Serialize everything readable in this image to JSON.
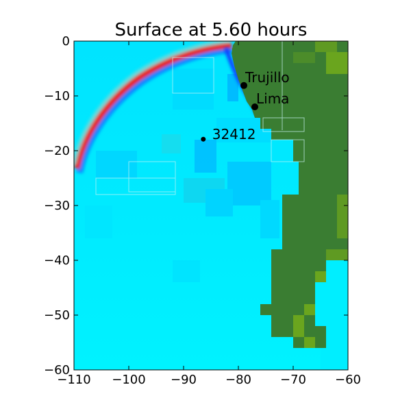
{
  "chart_data": {
    "type": "heatmap",
    "title": "Surface at 5.60 hours",
    "xlabel": "",
    "ylabel": "",
    "xlim": [
      -110,
      -60
    ],
    "ylim": [
      -60,
      0
    ],
    "x_ticks": [
      -110,
      -100,
      -90,
      -80,
      -70,
      -60
    ],
    "x_tick_labels": [
      "−110",
      "−100",
      "−90",
      "−80",
      "−70",
      "−60"
    ],
    "y_ticks": [
      0,
      -10,
      -20,
      -30,
      -40,
      -50,
      -60
    ],
    "y_tick_labels": [
      "0",
      "−10",
      "−20",
      "−30",
      "−40",
      "−50",
      "−60"
    ],
    "grid": false,
    "colors": {
      "ocean": "#00eeff",
      "ocean_deep": "#00c8ff",
      "land": "#3a7d32",
      "land_light": "#6aa51e",
      "wave_crest": "#e8221a",
      "wave_trough": "#1460ff",
      "marker": "#000000"
    },
    "points": [
      {
        "name": "Trujillo",
        "x": -79.0,
        "y": -8.1
      },
      {
        "name": "Lima",
        "x": -77.0,
        "y": -12.0
      },
      {
        "name": "32412",
        "x": -86.4,
        "y": -17.9
      }
    ]
  }
}
